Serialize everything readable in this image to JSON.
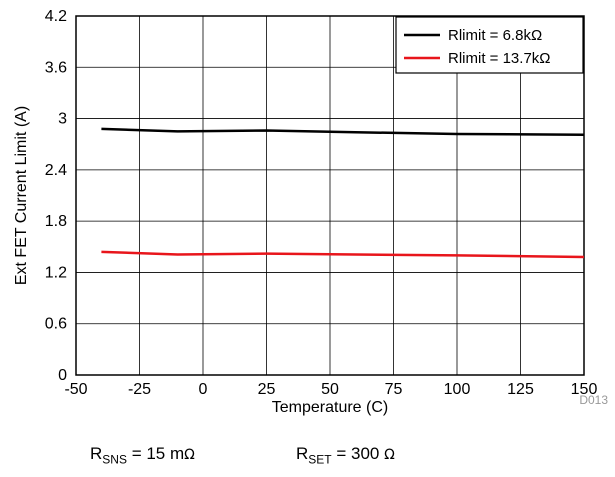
{
  "figure_id": "D013",
  "conditions": [
    {
      "symbol": "R",
      "subscript": "SNS",
      "value": "= 15 m",
      "unit": "Ω"
    },
    {
      "symbol": "R",
      "subscript": "SET",
      "value": "= 300",
      "unit": "Ω"
    }
  ],
  "chart_data": {
    "type": "line",
    "xlabel": "Temperature (C)",
    "ylabel": "Ext FET Current Limit (A)",
    "xlim": [
      -50,
      150
    ],
    "ylim": [
      0,
      4.2
    ],
    "xticks": [
      "-50",
      "-25",
      "0",
      "25",
      "50",
      "75",
      "100",
      "125",
      "150"
    ],
    "yticks": [
      "0",
      "0.6",
      "1.2",
      "1.8",
      "2.4",
      "3",
      "3.6",
      "4.2"
    ],
    "grid": true,
    "legend_position": "top-right",
    "series": [
      {
        "name": "Rlimit = 6.8kΩ",
        "color": "#000000",
        "x": [
          -40,
          -10,
          25,
          60,
          100,
          150
        ],
        "y": [
          2.88,
          2.85,
          2.86,
          2.84,
          2.82,
          2.81
        ]
      },
      {
        "name": "Rlimit = 13.7kΩ",
        "color": "#e8151b",
        "x": [
          -40,
          -10,
          25,
          60,
          100,
          150
        ],
        "y": [
          1.44,
          1.41,
          1.42,
          1.41,
          1.4,
          1.38
        ]
      }
    ]
  }
}
